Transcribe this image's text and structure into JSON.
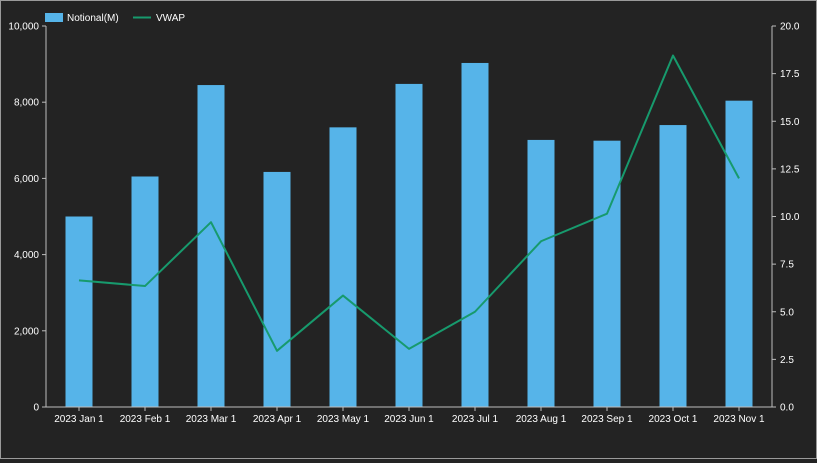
{
  "chart_data": {
    "type": "bar+line",
    "categories": [
      "2023 Jan 1",
      "2023 Feb 1",
      "2023 Mar 1",
      "2023 Apr 1",
      "2023 May 1",
      "2023 Jun 1",
      "2023 Jul 1",
      "2023 Aug 1",
      "2023 Sep 1",
      "2023 Oct 1",
      "2023 Nov 1"
    ],
    "series": [
      {
        "name": "Notional(M)",
        "type": "bar",
        "axis": "left",
        "color": "#56b4e9",
        "values": [
          5000,
          6050,
          8450,
          6170,
          7340,
          8480,
          9030,
          7010,
          6990,
          7400,
          8040
        ]
      },
      {
        "name": "VWAP",
        "type": "line",
        "axis": "right",
        "color": "#179a6d",
        "values": [
          6.65,
          6.35,
          9.7,
          2.95,
          5.85,
          3.05,
          5.0,
          8.7,
          10.15,
          18.45,
          12.0
        ]
      }
    ],
    "y_left": {
      "min": 0,
      "max": 10000,
      "ticks": [
        0,
        2000,
        4000,
        6000,
        8000,
        10000
      ],
      "tick_labels": [
        "0",
        "2,000",
        "4,000",
        "6,000",
        "8,000",
        "10,000"
      ]
    },
    "y_right": {
      "min": 0,
      "max": 20,
      "ticks": [
        0,
        2.5,
        5,
        7.5,
        10,
        12.5,
        15,
        17.5,
        20
      ],
      "tick_labels": [
        "0.0",
        "2.5",
        "5.0",
        "7.5",
        "10.0",
        "12.5",
        "15.0",
        "17.5",
        "20.0"
      ]
    },
    "grid": false,
    "legend": "top-left",
    "colors": {
      "background": "#232323",
      "text": "#ffffff",
      "axis": "#bdbdbd"
    }
  }
}
